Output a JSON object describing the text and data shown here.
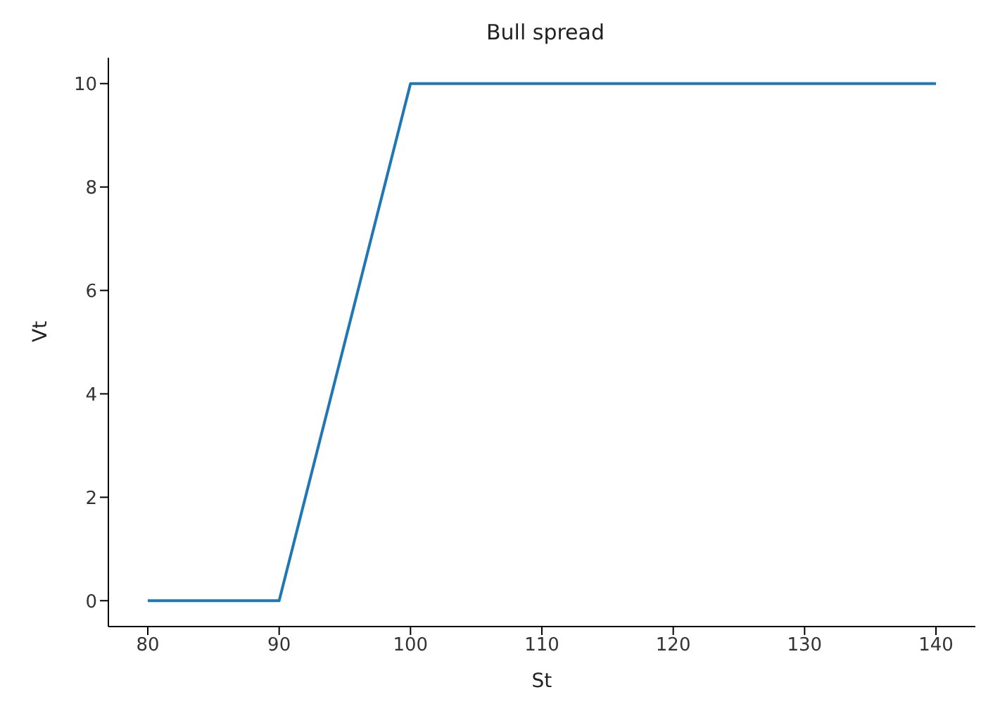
{
  "chart_data": {
    "type": "line",
    "title": "Bull spread",
    "xlabel": "St",
    "ylabel": "Vt",
    "x": [
      80,
      90,
      100,
      110,
      120,
      130,
      140
    ],
    "series": [
      {
        "color": "#1f77b4",
        "values": [
          0,
          0,
          10,
          10,
          10,
          10,
          10
        ]
      }
    ],
    "xlim": [
      77,
      143
    ],
    "ylim": [
      -0.5,
      10.5
    ],
    "xticks": [
      80,
      90,
      100,
      110,
      120,
      130,
      140
    ],
    "yticks": [
      0,
      2,
      4,
      6,
      8,
      10
    ],
    "marker": "none",
    "line_style": "solid"
  }
}
